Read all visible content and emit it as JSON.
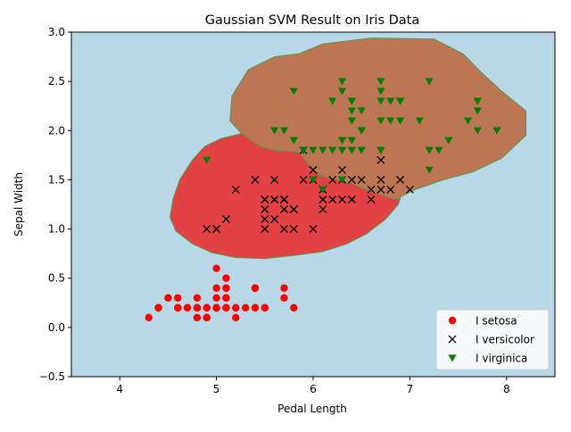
{
  "chart_data": {
    "type": "scatter",
    "title": "Gaussian SVM Result on Iris Data",
    "xlabel": "Pedal Length",
    "ylabel": "Sepal Width",
    "xlim": [
      3.5,
      8.5
    ],
    "ylim": [
      -0.5,
      3.0
    ],
    "xticks": [
      "4",
      "5",
      "6",
      "7",
      "8"
    ],
    "yticks": [
      "−0.5",
      "0.0",
      "0.5",
      "1.0",
      "1.5",
      "2.0",
      "2.5",
      "3.0"
    ],
    "xtick_values": [
      4,
      5,
      6,
      7,
      8
    ],
    "ytick_values": [
      -0.5,
      0.0,
      0.5,
      1.0,
      1.5,
      2.0,
      2.5,
      3.0
    ],
    "grid": false,
    "legend_position": "lower-right",
    "background_region_color": "#b8d8e8",
    "decision_regions": [
      {
        "name": "versicolor-region",
        "color": "#e34244",
        "outline": [
          [
            5.05,
            1.92
          ],
          [
            5.3,
            1.98
          ],
          [
            5.6,
            2.0
          ],
          [
            5.9,
            1.99
          ],
          [
            6.1,
            1.93
          ],
          [
            6.3,
            1.85
          ],
          [
            6.5,
            1.75
          ],
          [
            6.7,
            1.62
          ],
          [
            6.85,
            1.5
          ],
          [
            6.92,
            1.38
          ],
          [
            6.88,
            1.25
          ],
          [
            6.75,
            1.1
          ],
          [
            6.55,
            0.95
          ],
          [
            6.35,
            0.85
          ],
          [
            6.1,
            0.77
          ],
          [
            5.8,
            0.73
          ],
          [
            5.5,
            0.7
          ],
          [
            5.2,
            0.71
          ],
          [
            4.95,
            0.76
          ],
          [
            4.75,
            0.85
          ],
          [
            4.58,
            0.98
          ],
          [
            4.52,
            1.12
          ],
          [
            4.55,
            1.3
          ],
          [
            4.62,
            1.5
          ],
          [
            4.75,
            1.7
          ],
          [
            4.88,
            1.84
          ]
        ]
      },
      {
        "name": "virginica-region",
        "color": "#bd7654",
        "outline": [
          [
            5.85,
            2.78
          ],
          [
            6.1,
            2.88
          ],
          [
            6.6,
            2.94
          ],
          [
            7.25,
            2.93
          ],
          [
            7.55,
            2.78
          ],
          [
            7.75,
            2.58
          ],
          [
            7.95,
            2.4
          ],
          [
            8.2,
            2.2
          ],
          [
            8.2,
            1.95
          ],
          [
            7.95,
            1.72
          ],
          [
            7.65,
            1.58
          ],
          [
            7.35,
            1.5
          ],
          [
            7.05,
            1.4
          ],
          [
            6.85,
            1.3
          ],
          [
            6.6,
            1.38
          ],
          [
            6.4,
            1.46
          ],
          [
            6.25,
            1.5
          ],
          [
            6.05,
            1.55
          ],
          [
            5.95,
            1.66
          ],
          [
            5.85,
            1.78
          ],
          [
            5.6,
            1.8
          ],
          [
            5.45,
            1.84
          ],
          [
            5.25,
            1.98
          ],
          [
            5.14,
            2.1
          ],
          [
            5.16,
            2.35
          ],
          [
            5.33,
            2.62
          ],
          [
            5.6,
            2.75
          ]
        ]
      }
    ],
    "series": [
      {
        "name": "I setosa",
        "marker": "circle",
        "color": "#ff0000",
        "points": [
          [
            5.1,
            0.2
          ],
          [
            4.9,
            0.2
          ],
          [
            4.7,
            0.2
          ],
          [
            4.6,
            0.2
          ],
          [
            5.0,
            0.2
          ],
          [
            5.4,
            0.4
          ],
          [
            4.6,
            0.3
          ],
          [
            5.0,
            0.2
          ],
          [
            4.4,
            0.2
          ],
          [
            4.9,
            0.1
          ],
          [
            5.4,
            0.2
          ],
          [
            4.8,
            0.2
          ],
          [
            4.8,
            0.1
          ],
          [
            4.3,
            0.1
          ],
          [
            5.8,
            0.2
          ],
          [
            5.7,
            0.4
          ],
          [
            5.4,
            0.4
          ],
          [
            5.1,
            0.3
          ],
          [
            5.7,
            0.3
          ],
          [
            5.1,
            0.3
          ],
          [
            5.4,
            0.2
          ],
          [
            5.1,
            0.4
          ],
          [
            4.6,
            0.2
          ],
          [
            5.1,
            0.5
          ],
          [
            4.8,
            0.2
          ],
          [
            5.0,
            0.2
          ],
          [
            5.0,
            0.4
          ],
          [
            5.2,
            0.2
          ],
          [
            5.2,
            0.2
          ],
          [
            4.7,
            0.2
          ],
          [
            4.8,
            0.2
          ],
          [
            5.4,
            0.4
          ],
          [
            5.2,
            0.1
          ],
          [
            5.5,
            0.2
          ],
          [
            4.9,
            0.2
          ],
          [
            5.0,
            0.2
          ],
          [
            5.5,
            0.2
          ],
          [
            4.9,
            0.1
          ],
          [
            4.4,
            0.2
          ],
          [
            5.1,
            0.2
          ],
          [
            5.0,
            0.3
          ],
          [
            4.5,
            0.3
          ],
          [
            4.4,
            0.2
          ],
          [
            5.0,
            0.6
          ],
          [
            5.1,
            0.4
          ],
          [
            4.8,
            0.3
          ],
          [
            5.1,
            0.2
          ],
          [
            4.6,
            0.2
          ],
          [
            5.3,
            0.2
          ],
          [
            5.0,
            0.2
          ]
        ]
      },
      {
        "name": "I versicolor",
        "marker": "x",
        "color": "#000000",
        "points": [
          [
            7.0,
            1.4
          ],
          [
            6.4,
            1.5
          ],
          [
            6.9,
            1.5
          ],
          [
            5.5,
            1.3
          ],
          [
            6.5,
            1.5
          ],
          [
            5.7,
            1.3
          ],
          [
            6.3,
            1.6
          ],
          [
            4.9,
            1.0
          ],
          [
            6.6,
            1.3
          ],
          [
            5.2,
            1.4
          ],
          [
            5.0,
            1.0
          ],
          [
            5.9,
            1.5
          ],
          [
            6.0,
            1.0
          ],
          [
            6.1,
            1.4
          ],
          [
            5.6,
            1.3
          ],
          [
            6.7,
            1.4
          ],
          [
            5.6,
            1.5
          ],
          [
            5.8,
            1.0
          ],
          [
            6.2,
            1.5
          ],
          [
            5.6,
            1.1
          ],
          [
            5.9,
            1.8
          ],
          [
            6.1,
            1.3
          ],
          [
            6.3,
            1.5
          ],
          [
            6.1,
            1.2
          ],
          [
            6.4,
            1.3
          ],
          [
            6.6,
            1.4
          ],
          [
            6.8,
            1.4
          ],
          [
            6.7,
            1.7
          ],
          [
            6.0,
            1.5
          ],
          [
            5.7,
            1.0
          ],
          [
            5.5,
            1.1
          ],
          [
            5.5,
            1.0
          ],
          [
            5.8,
            1.2
          ],
          [
            6.0,
            1.6
          ],
          [
            5.4,
            1.5
          ],
          [
            6.0,
            1.6
          ],
          [
            6.7,
            1.5
          ],
          [
            6.3,
            1.3
          ],
          [
            5.6,
            1.3
          ],
          [
            5.5,
            1.3
          ],
          [
            5.5,
            1.2
          ],
          [
            6.1,
            1.4
          ],
          [
            5.8,
            1.2
          ],
          [
            5.0,
            1.0
          ],
          [
            5.6,
            1.3
          ],
          [
            5.7,
            1.2
          ],
          [
            5.7,
            1.3
          ],
          [
            6.2,
            1.3
          ],
          [
            5.1,
            1.1
          ],
          [
            5.7,
            1.3
          ]
        ]
      },
      {
        "name": "I virginica",
        "marker": "triangle-down",
        "color": "#008000",
        "points": [
          [
            6.3,
            2.5
          ],
          [
            5.8,
            1.9
          ],
          [
            7.1,
            2.1
          ],
          [
            6.3,
            1.8
          ],
          [
            6.5,
            2.2
          ],
          [
            7.6,
            2.1
          ],
          [
            4.9,
            1.7
          ],
          [
            7.3,
            1.8
          ],
          [
            6.7,
            1.8
          ],
          [
            7.2,
            2.5
          ],
          [
            6.5,
            2.0
          ],
          [
            6.4,
            1.9
          ],
          [
            6.8,
            2.1
          ],
          [
            5.7,
            2.0
          ],
          [
            5.8,
            2.4
          ],
          [
            6.4,
            2.3
          ],
          [
            6.5,
            1.8
          ],
          [
            7.7,
            2.2
          ],
          [
            7.7,
            2.3
          ],
          [
            6.0,
            1.5
          ],
          [
            6.9,
            2.3
          ],
          [
            5.6,
            2.0
          ],
          [
            7.7,
            2.0
          ],
          [
            6.3,
            1.8
          ],
          [
            6.7,
            2.1
          ],
          [
            7.2,
            1.8
          ],
          [
            6.2,
            1.8
          ],
          [
            6.1,
            1.8
          ],
          [
            6.4,
            2.1
          ],
          [
            7.2,
            1.6
          ],
          [
            7.4,
            1.9
          ],
          [
            7.9,
            2.0
          ],
          [
            6.4,
            2.2
          ],
          [
            6.3,
            1.5
          ],
          [
            6.1,
            1.4
          ],
          [
            7.7,
            2.3
          ],
          [
            6.3,
            2.4
          ],
          [
            6.4,
            1.8
          ],
          [
            6.0,
            1.8
          ],
          [
            6.9,
            2.1
          ],
          [
            6.7,
            2.4
          ],
          [
            6.9,
            2.3
          ],
          [
            5.8,
            1.9
          ],
          [
            6.8,
            2.3
          ],
          [
            6.7,
            2.5
          ],
          [
            6.7,
            2.3
          ],
          [
            6.3,
            1.9
          ],
          [
            6.5,
            2.0
          ],
          [
            6.2,
            2.3
          ],
          [
            5.9,
            1.8
          ]
        ]
      }
    ]
  }
}
